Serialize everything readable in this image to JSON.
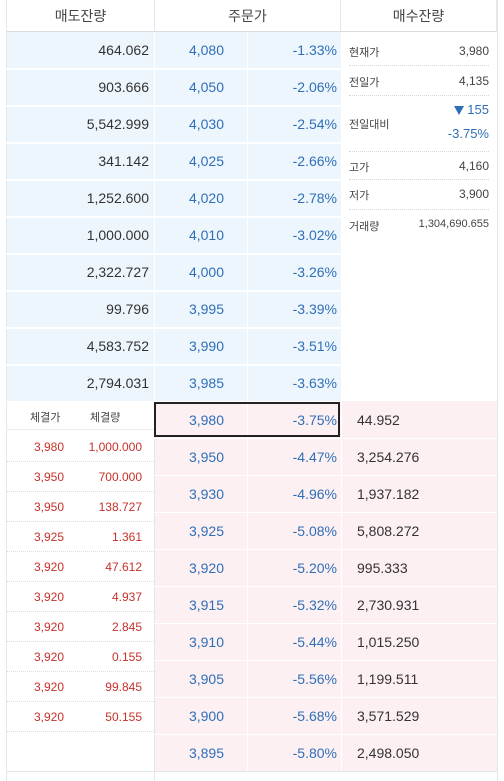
{
  "headers": {
    "ask_volume": "매도잔량",
    "order_price": "주문가",
    "bid_volume": "매수잔량"
  },
  "asks": [
    {
      "volume": "464.062",
      "price": "4,080",
      "rate": "-1.33%"
    },
    {
      "volume": "903.666",
      "price": "4,050",
      "rate": "-2.06%"
    },
    {
      "volume": "5,542.999",
      "price": "4,030",
      "rate": "-2.54%"
    },
    {
      "volume": "341.142",
      "price": "4,025",
      "rate": "-2.66%"
    },
    {
      "volume": "1,252.600",
      "price": "4,020",
      "rate": "-2.78%"
    },
    {
      "volume": "1,000.000",
      "price": "4,010",
      "rate": "-3.02%"
    },
    {
      "volume": "2,322.727",
      "price": "4,000",
      "rate": "-3.26%"
    },
    {
      "volume": "99.796",
      "price": "3,995",
      "rate": "-3.39%"
    },
    {
      "volume": "4,583.752",
      "price": "3,990",
      "rate": "-3.51%"
    },
    {
      "volume": "2,794.031",
      "price": "3,985",
      "rate": "-3.63%"
    }
  ],
  "bids": [
    {
      "price": "3,980",
      "rate": "-3.75%",
      "volume": "44.952"
    },
    {
      "price": "3,950",
      "rate": "-4.47%",
      "volume": "3,254.276"
    },
    {
      "price": "3,930",
      "rate": "-4.96%",
      "volume": "1,937.182"
    },
    {
      "price": "3,925",
      "rate": "-5.08%",
      "volume": "5,808.272"
    },
    {
      "price": "3,920",
      "rate": "-5.20%",
      "volume": "995.333"
    },
    {
      "price": "3,915",
      "rate": "-5.32%",
      "volume": "2,730.931"
    },
    {
      "price": "3,910",
      "rate": "-5.44%",
      "volume": "1,015.250"
    },
    {
      "price": "3,905",
      "rate": "-5.56%",
      "volume": "1,199.511"
    },
    {
      "price": "3,900",
      "rate": "-5.68%",
      "volume": "3,571.529"
    },
    {
      "price": "3,895",
      "rate": "-5.80%",
      "volume": "2,498.050"
    }
  ],
  "info": {
    "current_label": "현재가",
    "current": "3,980",
    "prev_label": "전일가",
    "prev": "4,135",
    "change_label": "전일대비",
    "change": "155",
    "change_rate": "-3.75%",
    "high_label": "고가",
    "high": "4,160",
    "low_label": "저가",
    "low": "3,900",
    "volume_label": "거래량",
    "volume": "1,304,690.655"
  },
  "trades_header": {
    "price": "체결가",
    "volume": "체결량"
  },
  "trades": [
    {
      "price": "3,980",
      "volume": "1,000.000"
    },
    {
      "price": "3,950",
      "volume": "700.000"
    },
    {
      "price": "3,950",
      "volume": "138.727"
    },
    {
      "price": "3,925",
      "volume": "1.361"
    },
    {
      "price": "3,920",
      "volume": "47.612"
    },
    {
      "price": "3,920",
      "volume": "4.937"
    },
    {
      "price": "3,920",
      "volume": "2.845"
    },
    {
      "price": "3,920",
      "volume": "0.155"
    },
    {
      "price": "3,920",
      "volume": "99.845"
    },
    {
      "price": "3,920",
      "volume": "50.155"
    }
  ],
  "colors": {
    "ask_bg": "#eef6fd",
    "bid_bg": "#fdf0f3",
    "price_blue": "#2f6fb8",
    "trade_red": "#c8312a"
  },
  "icons": {
    "change_direction": "triangle-down-icon"
  }
}
